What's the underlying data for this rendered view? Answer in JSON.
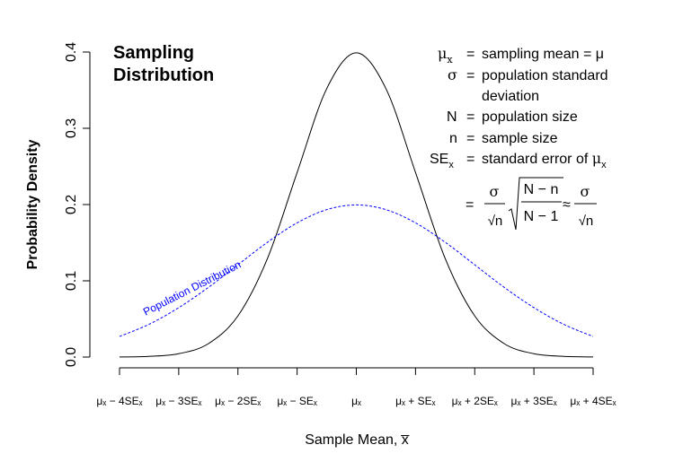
{
  "chart_data": {
    "type": "line",
    "title_line1": "Sampling",
    "title_line2": "Distribution",
    "xlabel": "Sample Mean, x̅",
    "ylabel": "Probability Density",
    "xlim": [
      -4,
      4
    ],
    "ylim": [
      0,
      0.4
    ],
    "y_ticks": [
      "0.0",
      "0.1",
      "0.2",
      "0.3",
      "0.4"
    ],
    "x_ticks": [
      "μₓ − 4SEₓ",
      "μₓ − 3SEₓ",
      "μₓ − 2SEₓ",
      "μₓ − SEₓ",
      "μₓ",
      "μₓ + SEₓ",
      "μₓ + 2SEₓ",
      "μₓ + 3SEₓ",
      "μₓ + 4SEₓ"
    ],
    "series": [
      {
        "name": "",
        "style": "solid",
        "color": "#000000",
        "x": [
          -4,
          -3.5,
          -3,
          -2.5,
          -2,
          -1.5,
          -1,
          -0.5,
          0,
          0.5,
          1,
          1.5,
          2,
          2.5,
          3,
          3.5,
          4
        ],
        "y": [
          0.0001,
          0.0009,
          0.0044,
          0.0175,
          0.054,
          0.1295,
          0.242,
          0.352,
          0.399,
          0.352,
          0.242,
          0.1295,
          0.054,
          0.0175,
          0.0044,
          0.0009,
          0.0001
        ]
      },
      {
        "name": "Population Distribution",
        "style": "dashed",
        "color": "#0000ff",
        "x": [
          -4,
          -3.5,
          -3,
          -2.5,
          -2,
          -1.5,
          -1,
          -0.5,
          0,
          0.5,
          1,
          1.5,
          2,
          2.5,
          3,
          3.5,
          4
        ],
        "y": [
          0.027,
          0.043,
          0.0648,
          0.0913,
          0.121,
          0.1506,
          0.176,
          0.1933,
          0.1995,
          0.1933,
          0.176,
          0.1506,
          0.121,
          0.0913,
          0.0648,
          0.043,
          0.027
        ]
      }
    ],
    "legend": {
      "mu_sym": "μ",
      "x_sub": "x",
      "sigma_sym": "σ",
      "eq": "=",
      "row1_text": "sampling mean = μ",
      "row2_text_a": "population standard",
      "row2_text_b": "deviation",
      "row3_sym": "N",
      "row3_text": "population size",
      "row4_sym": "n",
      "row4_text": "sample size",
      "row5_sym": "SE",
      "row5_text_a": "standard error of ",
      "formula_num1": "σ",
      "formula_den1": "√n",
      "formula_sqrt_num": "N − n",
      "formula_sqrt_den": "N − 1",
      "approx": "≈",
      "formula_num2": "σ",
      "formula_den2": "√n"
    }
  }
}
